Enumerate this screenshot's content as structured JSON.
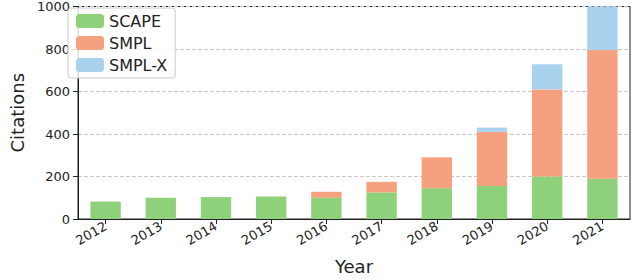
{
  "chart_data": {
    "type": "bar",
    "stacked": true,
    "x_label": "Year",
    "y_label": "Citations",
    "categories": [
      "2012",
      "2013",
      "2014",
      "2015",
      "2016",
      "2017",
      "2018",
      "2019",
      "2020",
      "2021"
    ],
    "series": [
      {
        "name": "SCAPE",
        "color": "#8fd07a",
        "values": [
          82,
          100,
          103,
          106,
          100,
          125,
          145,
          155,
          200,
          190
        ]
      },
      {
        "name": "SMPL",
        "color": "#f5a07e",
        "values": [
          null,
          null,
          null,
          null,
          28,
          50,
          145,
          255,
          410,
          605
        ]
      },
      {
        "name": "SMPL-X",
        "color": "#a9d2ee",
        "values": [
          null,
          null,
          null,
          null,
          null,
          null,
          null,
          20,
          118,
          205
        ]
      }
    ],
    "ylim": [
      0,
      1000
    ],
    "yticks": [
      0,
      200,
      400,
      600,
      800,
      1000
    ],
    "grid": true,
    "legend": "upper left"
  }
}
